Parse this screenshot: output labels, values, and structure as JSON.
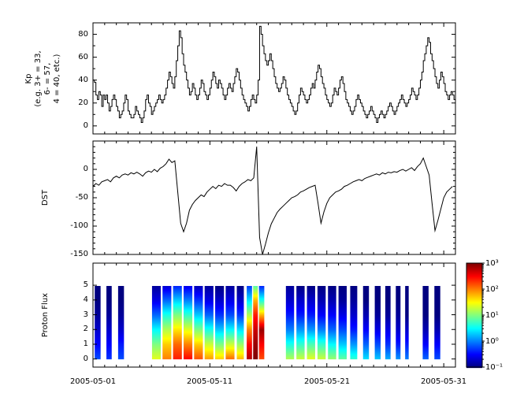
{
  "figure": {
    "background": "#ffffff",
    "line_color": "#000000"
  },
  "chart_data": {
    "type": "multi-panel",
    "x_range": [
      1,
      32
    ],
    "x_ticks": [
      {
        "day": 1,
        "label": "2005-05-01"
      },
      {
        "day": 11,
        "label": "2005-05-11"
      },
      {
        "day": 21,
        "label": "2005-05-21"
      },
      {
        "day": 31,
        "label": "2005-05-31"
      }
    ],
    "x_minor_step_days": 1,
    "panels": [
      {
        "name": "kp",
        "type": "line",
        "line_style": "step",
        "ylabel": "Kp\n(e.g. 3+ = 33,\n6- = 57,\n4 = 40, etc.)",
        "y_range": [
          -7,
          90
        ],
        "y_ticks": [
          0,
          20,
          40,
          60,
          80
        ],
        "y_minor": [
          10,
          30,
          50,
          70
        ],
        "step_hours": 3,
        "values": [
          40,
          38,
          27,
          23,
          30,
          27,
          17,
          27,
          23,
          27,
          20,
          13,
          17,
          23,
          27,
          23,
          17,
          13,
          7,
          10,
          13,
          20,
          27,
          23,
          13,
          10,
          7,
          7,
          10,
          17,
          13,
          10,
          7,
          3,
          7,
          13,
          23,
          27,
          20,
          17,
          10,
          13,
          17,
          20,
          23,
          27,
          23,
          20,
          23,
          27,
          33,
          40,
          47,
          43,
          37,
          33,
          43,
          57,
          70,
          83,
          77,
          63,
          53,
          47,
          40,
          33,
          27,
          30,
          37,
          33,
          27,
          23,
          27,
          33,
          40,
          37,
          30,
          27,
          23,
          27,
          33,
          40,
          47,
          43,
          37,
          33,
          40,
          37,
          33,
          27,
          23,
          27,
          33,
          37,
          33,
          30,
          37,
          43,
          50,
          47,
          40,
          33,
          27,
          23,
          20,
          17,
          13,
          17,
          23,
          27,
          23,
          20,
          27,
          40,
          87,
          80,
          70,
          63,
          57,
          53,
          57,
          63,
          57,
          50,
          43,
          37,
          33,
          30,
          33,
          37,
          43,
          40,
          33,
          27,
          23,
          20,
          17,
          13,
          10,
          13,
          20,
          27,
          33,
          30,
          27,
          23,
          20,
          23,
          27,
          33,
          37,
          33,
          40,
          47,
          53,
          50,
          43,
          37,
          33,
          27,
          23,
          20,
          17,
          20,
          27,
          33,
          30,
          27,
          33,
          40,
          43,
          37,
          30,
          23,
          20,
          17,
          13,
          10,
          13,
          17,
          23,
          27,
          23,
          20,
          17,
          13,
          10,
          7,
          10,
          13,
          17,
          13,
          10,
          7,
          3,
          7,
          10,
          13,
          10,
          7,
          10,
          13,
          17,
          20,
          17,
          13,
          10,
          13,
          17,
          20,
          23,
          27,
          23,
          20,
          17,
          20,
          23,
          27,
          33,
          30,
          27,
          23,
          27,
          33,
          40,
          47,
          57,
          63,
          70,
          77,
          73,
          63,
          57,
          50,
          43,
          37,
          33,
          40,
          47,
          43,
          37,
          30,
          27,
          23,
          27,
          30,
          27,
          23
        ]
      },
      {
        "name": "dst",
        "type": "line",
        "line_style": "linear",
        "ylabel": "DST",
        "y_range": [
          -150,
          50
        ],
        "y_ticks": [
          0,
          -50,
          -100,
          -150
        ],
        "y_minor": [
          -140,
          -130,
          -120,
          -110,
          -90,
          -80,
          -70,
          -60,
          -40,
          -30,
          -20,
          -10,
          10,
          20,
          30,
          40
        ],
        "step_hours": 6,
        "values": [
          -30,
          -25,
          -28,
          -22,
          -20,
          -18,
          -22,
          -15,
          -12,
          -15,
          -10,
          -8,
          -10,
          -6,
          -8,
          -5,
          -8,
          -12,
          -6,
          -3,
          -5,
          0,
          -4,
          2,
          5,
          10,
          18,
          12,
          15,
          -40,
          -95,
          -110,
          -95,
          -72,
          -62,
          -55,
          -50,
          -45,
          -48,
          -40,
          -35,
          -30,
          -34,
          -28,
          -30,
          -25,
          -28,
          -28,
          -32,
          -38,
          -30,
          -25,
          -22,
          -18,
          -20,
          -15,
          40,
          -120,
          -150,
          -132,
          -112,
          -96,
          -86,
          -76,
          -70,
          -65,
          -60,
          -55,
          -50,
          -48,
          -45,
          -40,
          -38,
          -35,
          -32,
          -30,
          -28,
          -60,
          -95,
          -75,
          -60,
          -50,
          -45,
          -40,
          -38,
          -35,
          -30,
          -28,
          -25,
          -22,
          -20,
          -18,
          -20,
          -16,
          -14,
          -12,
          -10,
          -8,
          -10,
          -6,
          -8,
          -5,
          -6,
          -4,
          -5,
          -2,
          0,
          -3,
          0,
          3,
          -2,
          5,
          10,
          20,
          5,
          -10,
          -60,
          -108,
          -90,
          -70,
          -50,
          -40,
          -35,
          -30
        ]
      },
      {
        "name": "proton_flux",
        "type": "heatmap",
        "ylabel": "Proton Flux",
        "y_range": [
          -0.55,
          6.5
        ],
        "y_ticks": [
          0,
          1,
          2,
          3,
          4,
          5
        ],
        "y_minor": [],
        "colormap": "jet",
        "log_range": [
          -1,
          3
        ],
        "stripes": [
          {
            "x": 1.15,
            "w": 0.5,
            "v": [
              -0.2,
              -0.5,
              -0.7,
              -0.9,
              -1,
              -1
            ]
          },
          {
            "x": 2.15,
            "w": 0.45,
            "v": [
              -0.3,
              -0.5,
              -0.7,
              -0.9,
              -1,
              -1
            ]
          },
          {
            "x": 3.15,
            "w": 0.5,
            "v": [
              -0.2,
              -0.4,
              -0.7,
              -0.9,
              -1,
              -1
            ]
          },
          {
            "x": 6.05,
            "w": 0.75,
            "v": [
              1.4,
              1.0,
              0.5,
              -0.1,
              -0.6,
              -0.9
            ]
          },
          {
            "x": 6.95,
            "w": 0.75,
            "v": [
              2.0,
              1.7,
              1.2,
              0.6,
              -0.1,
              -0.7
            ]
          },
          {
            "x": 7.85,
            "w": 0.75,
            "v": [
              2.4,
              2.1,
              1.6,
              1.0,
              0.3,
              -0.4
            ]
          },
          {
            "x": 8.75,
            "w": 0.75,
            "v": [
              2.5,
              2.0,
              1.4,
              0.7,
              0,
              -0.6
            ]
          },
          {
            "x": 9.65,
            "w": 0.75,
            "v": [
              2.2,
              1.7,
              1.0,
              0.3,
              -0.3,
              -0.8
            ]
          },
          {
            "x": 10.55,
            "w": 0.75,
            "v": [
              1.9,
              1.3,
              0.6,
              -0.1,
              -0.6,
              -0.9
            ]
          },
          {
            "x": 11.45,
            "w": 0.75,
            "v": [
              1.7,
              1.0,
              0.3,
              -0.3,
              -0.7,
              -1
            ]
          },
          {
            "x": 12.35,
            "w": 0.75,
            "v": [
              2.1,
              1.3,
              0.5,
              -0.2,
              -0.6,
              -0.9
            ]
          },
          {
            "x": 13.3,
            "w": 0.6,
            "v": [
              1.8,
              1.1,
              0.4,
              -0.3,
              -0.7,
              -1
            ]
          },
          {
            "x": 14.15,
            "w": 0.45,
            "v": [
              2.8,
              2.5,
              2.0,
              1.2,
              0.4,
              -0.3
            ]
          },
          {
            "x": 14.7,
            "w": 0.4,
            "v": [
              3.0,
              2.9,
              2.7,
              2.4,
              1.8,
              0.8
            ]
          },
          {
            "x": 15.2,
            "w": 0.45,
            "v": [
              2.2,
              2.5,
              2.9,
              1.8,
              0.6,
              -0.4
            ]
          },
          {
            "x": 17.5,
            "w": 0.7,
            "v": [
              1.2,
              0.6,
              0,
              -0.4,
              -0.7,
              -0.9
            ]
          },
          {
            "x": 18.4,
            "w": 0.7,
            "v": [
              1.3,
              0.7,
              0.1,
              -0.4,
              -0.7,
              -1
            ]
          },
          {
            "x": 19.3,
            "w": 0.7,
            "v": [
              1.4,
              0.8,
              0.1,
              -0.4,
              -0.7,
              -1
            ]
          },
          {
            "x": 20.2,
            "w": 0.7,
            "v": [
              1.3,
              0.7,
              0,
              -0.5,
              -0.8,
              -1
            ]
          },
          {
            "x": 21.1,
            "w": 0.7,
            "v": [
              1.1,
              0.5,
              -0.1,
              -0.5,
              -0.8,
              -1
            ]
          },
          {
            "x": 22.0,
            "w": 0.7,
            "v": [
              0.9,
              0.3,
              -0.2,
              -0.6,
              -0.9,
              -1
            ]
          },
          {
            "x": 23.0,
            "w": 0.6,
            "v": [
              0.7,
              0.1,
              -0.4,
              -0.7,
              -0.9,
              -1
            ]
          },
          {
            "x": 24.1,
            "w": 0.5,
            "v": [
              0.4,
              -0.1,
              -0.5,
              -0.8,
              -1,
              -1
            ]
          },
          {
            "x": 25.1,
            "w": 0.5,
            "v": [
              0.3,
              -0.2,
              -0.6,
              -0.9,
              -1,
              -1
            ]
          },
          {
            "x": 26.0,
            "w": 0.45,
            "v": [
              0.2,
              -0.3,
              -0.6,
              -0.9,
              -1,
              -1
            ]
          },
          {
            "x": 26.9,
            "w": 0.4,
            "v": [
              0.1,
              -0.4,
              -0.7,
              -0.9,
              -1,
              -1
            ]
          },
          {
            "x": 27.7,
            "w": 0.3,
            "v": [
              0,
              -0.4,
              -0.7,
              -1,
              -1,
              -1
            ]
          },
          {
            "x": 29.2,
            "w": 0.5,
            "v": [
              -0.1,
              -0.5,
              -0.8,
              -1,
              -1,
              -1
            ]
          },
          {
            "x": 30.2,
            "w": 0.5,
            "v": [
              -0.2,
              -0.5,
              -0.8,
              -1,
              -1,
              -1
            ]
          }
        ]
      }
    ],
    "colorbar": {
      "orientation": "vertical",
      "colormap": "jet",
      "scale": "log",
      "tick_values": [
        3,
        2,
        1,
        0,
        -1
      ],
      "tick_labels": [
        "10³",
        "10²",
        "10¹",
        "10⁰",
        "10⁻¹"
      ]
    }
  }
}
